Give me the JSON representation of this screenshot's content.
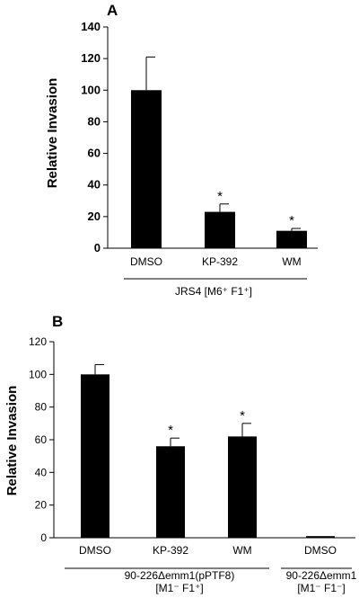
{
  "chart_data": [
    {
      "type": "bar",
      "panel_label": "A",
      "ylabel": "Relative Invasion",
      "ylim": [
        0,
        140
      ],
      "yticks": [
        "0",
        "20",
        "40",
        "60",
        "80",
        "100",
        "120",
        "140"
      ],
      "categories": [
        "DMSO",
        "KP-392",
        "WM"
      ],
      "values": [
        100,
        23,
        11
      ],
      "errors": [
        21,
        5,
        1.5
      ],
      "significance": [
        "",
        "*",
        "*"
      ],
      "group_labels": [
        {
          "text": "JRS4 [M6⁺ F1⁺]"
        }
      ]
    },
    {
      "type": "bar",
      "panel_label": "B",
      "ylabel": "Relative Invasion",
      "ylim": [
        0,
        120
      ],
      "yticks": [
        "0",
        "20",
        "40",
        "60",
        "80",
        "100",
        "120"
      ],
      "categories": [
        "DMSO",
        "KP-392",
        "WM",
        "DMSO"
      ],
      "values": [
        100,
        56,
        62,
        1
      ],
      "errors": [
        6,
        5,
        8,
        0
      ],
      "significance": [
        "",
        "*",
        "*",
        ""
      ],
      "group_labels": [
        {
          "line1": "90-226Δemm1(pPTF8)",
          "line2": "[M1⁻ F1⁺]"
        },
        {
          "line1": "90-226Δemm1",
          "line2": "[M1⁻ F1⁻]"
        }
      ]
    }
  ]
}
